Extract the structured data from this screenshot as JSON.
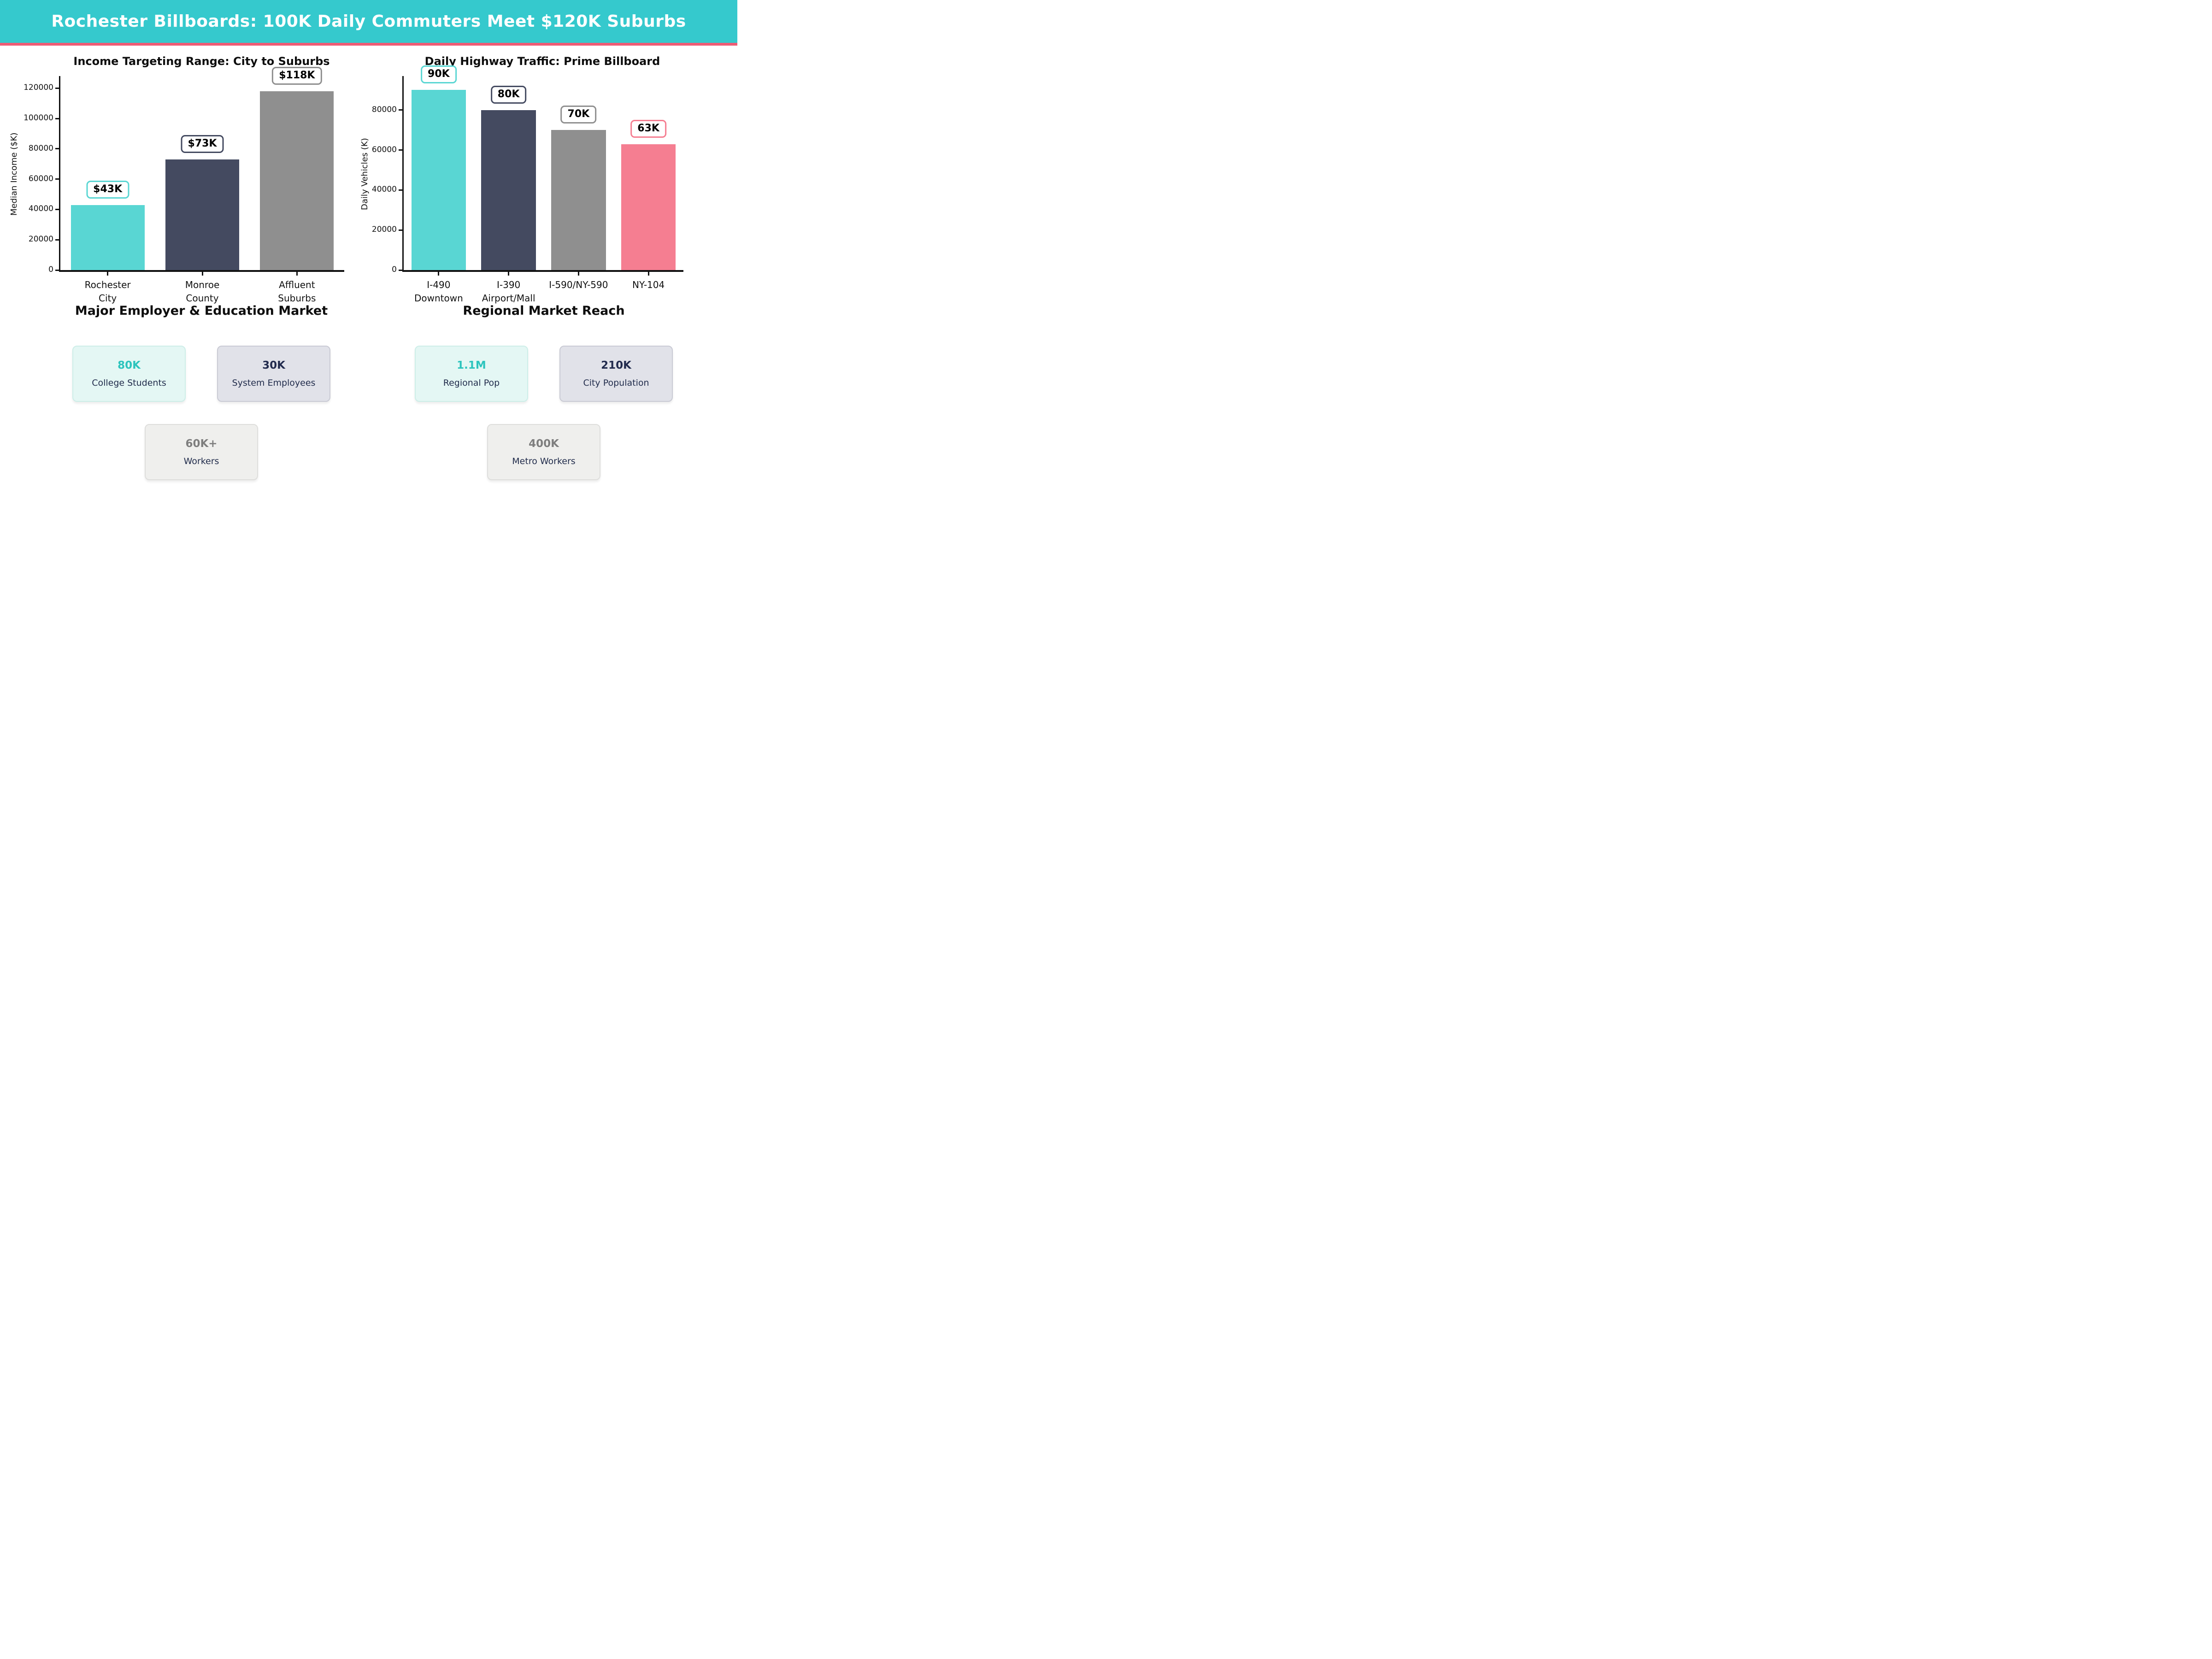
{
  "header": {
    "title": "Rochester Billboards: 100K Daily Commuters Meet $120K Suburbs",
    "bg_color": "#35c9cd",
    "accent_color": "#ee5c75",
    "text_color": "#ffffff"
  },
  "chart_data": [
    {
      "type": "bar",
      "title": "Income Targeting Range: City to Suburbs",
      "categories": [
        "Rochester City",
        "Monroe County",
        "Affluent Suburbs"
      ],
      "category_lines": [
        [
          "Rochester",
          "City"
        ],
        [
          "Monroe",
          "County"
        ],
        [
          "Affluent",
          "Suburbs"
        ]
      ],
      "values": [
        43000,
        73000,
        118000
      ],
      "bar_labels": [
        "$43K",
        "$73K",
        "$118K"
      ],
      "bar_colors": [
        "#59d6d3",
        "#444a60",
        "#8f8f8f"
      ],
      "xlabel": "",
      "ylabel": "Median Income ($K)",
      "yticks": [
        0,
        20000,
        40000,
        60000,
        80000,
        100000,
        120000
      ],
      "ylim": [
        0,
        128000
      ],
      "grid": false,
      "legend": "none"
    },
    {
      "type": "bar",
      "title": "Daily Highway Traffic: Prime Billboard",
      "categories": [
        "I-490 Downtown",
        "I-390 Airport/Mall",
        "I-590/NY-590",
        "NY-104"
      ],
      "category_lines": [
        [
          "I-490",
          "Downtown"
        ],
        [
          "I-390",
          "Airport/Mall"
        ],
        [
          "I-590/NY-590"
        ],
        [
          "NY-104"
        ]
      ],
      "values": [
        90000,
        80000,
        70000,
        63000
      ],
      "bar_labels": [
        "90K",
        "80K",
        "70K",
        "63K"
      ],
      "bar_colors": [
        "#59d6d3",
        "#444a60",
        "#8f8f8f",
        "#f57e91"
      ],
      "xlabel": "",
      "ylabel": "Daily Vehicles (K)",
      "yticks": [
        0,
        20000,
        40000,
        60000,
        80000
      ],
      "ylim": [
        0,
        97000
      ],
      "grid": false,
      "legend": "none"
    }
  ],
  "card_styles": {
    "mint": {
      "bg": "#e4f7f4",
      "border": "#cdeee8",
      "value_color": "#2cc4bd"
    },
    "lavender": {
      "bg": "#e1e2e9",
      "border": "#c9cad4",
      "value_color": "#222b4e"
    },
    "gray": {
      "bg": "#efefed",
      "border": "#dededc",
      "value_color": "#7e7e7e"
    }
  },
  "card_label_color": "#1f2a4a",
  "sections": [
    {
      "title": "Major Employer & Education Market",
      "cards": [
        {
          "value": "80K",
          "label": "College Students",
          "style": "mint"
        },
        {
          "value": "30K",
          "label": "System Employees",
          "style": "lavender"
        },
        {
          "value": "60K+",
          "label": "Workers",
          "style": "gray"
        }
      ]
    },
    {
      "title": "Regional Market Reach",
      "cards": [
        {
          "value": "1.1M",
          "label": "Regional Pop",
          "style": "mint"
        },
        {
          "value": "210K",
          "label": "City Population",
          "style": "lavender"
        },
        {
          "value": "400K",
          "label": "Metro Workers",
          "style": "gray"
        }
      ]
    }
  ]
}
